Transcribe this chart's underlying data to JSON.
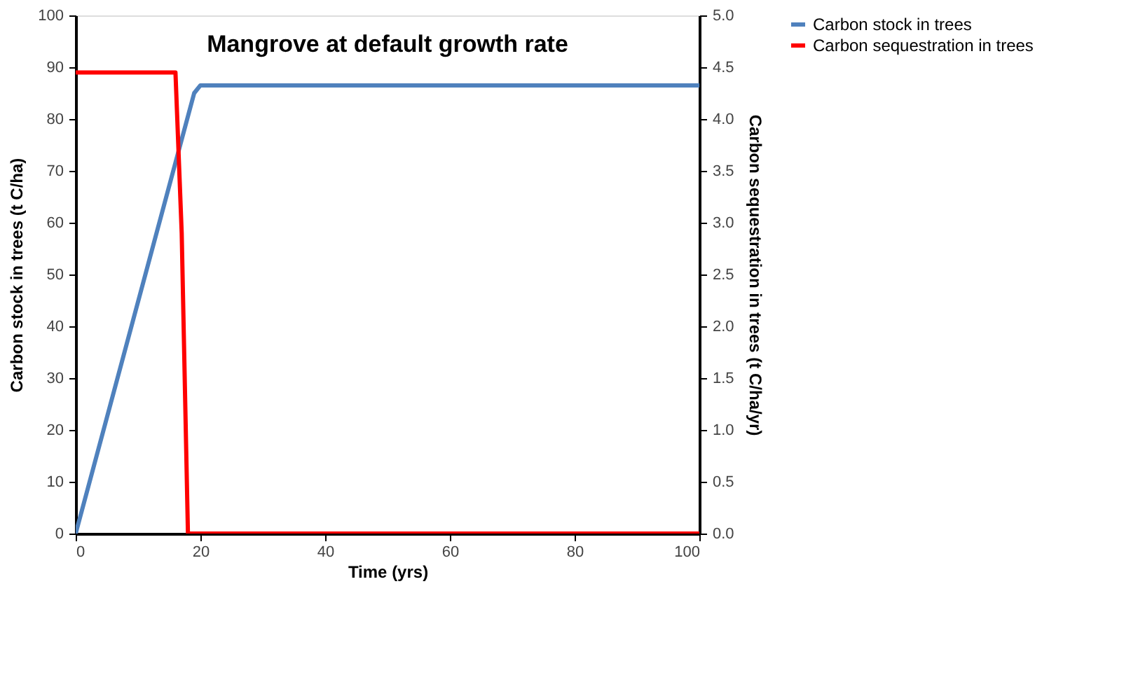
{
  "chart_data": {
    "type": "line",
    "title": "Mangrove at default growth rate",
    "xlabel": "Time (yrs)",
    "ylabel": "Carbon stock in trees (t C/ha)",
    "y2label": "Carbon sequestration in trees (t C/ha/yr)",
    "series": [
      {
        "name": "Carbon stock in trees",
        "color": "#4f81bd",
        "x": [
          0,
          19,
          20,
          100
        ],
        "values": [
          0,
          85,
          86.5,
          86.5
        ]
      },
      {
        "name": "Carbon sequestration in trees",
        "color": "#ff0000",
        "axis": "y2",
        "x": [
          0,
          16,
          17,
          18,
          100
        ],
        "values": [
          4.45,
          4.45,
          2.9,
          0,
          0
        ]
      }
    ],
    "xlim": [
      0,
      100
    ],
    "xticks": [
      0,
      20,
      40,
      60,
      80,
      100
    ],
    "ylim": [
      0,
      100
    ],
    "yticks": [
      0,
      10,
      20,
      30,
      40,
      50,
      60,
      70,
      80,
      90,
      100
    ],
    "y2lim": [
      0,
      5
    ],
    "y2ticks": [
      {
        "value": 0,
        "label": "0.0"
      },
      {
        "value": 0.5,
        "label": "0.5"
      },
      {
        "value": 1,
        "label": "1.0"
      },
      {
        "value": 1.5,
        "label": "1.5"
      },
      {
        "value": 2,
        "label": "2.0"
      },
      {
        "value": 2.5,
        "label": "2.5"
      },
      {
        "value": 3,
        "label": "3.0"
      },
      {
        "value": 3.5,
        "label": "3.5"
      },
      {
        "value": 4,
        "label": "4.0"
      },
      {
        "value": 4.5,
        "label": "4.5"
      },
      {
        "value": 5,
        "label": "5.0"
      }
    ],
    "grid": false,
    "legend": "right",
    "marker": "none",
    "line_style": "solid"
  }
}
